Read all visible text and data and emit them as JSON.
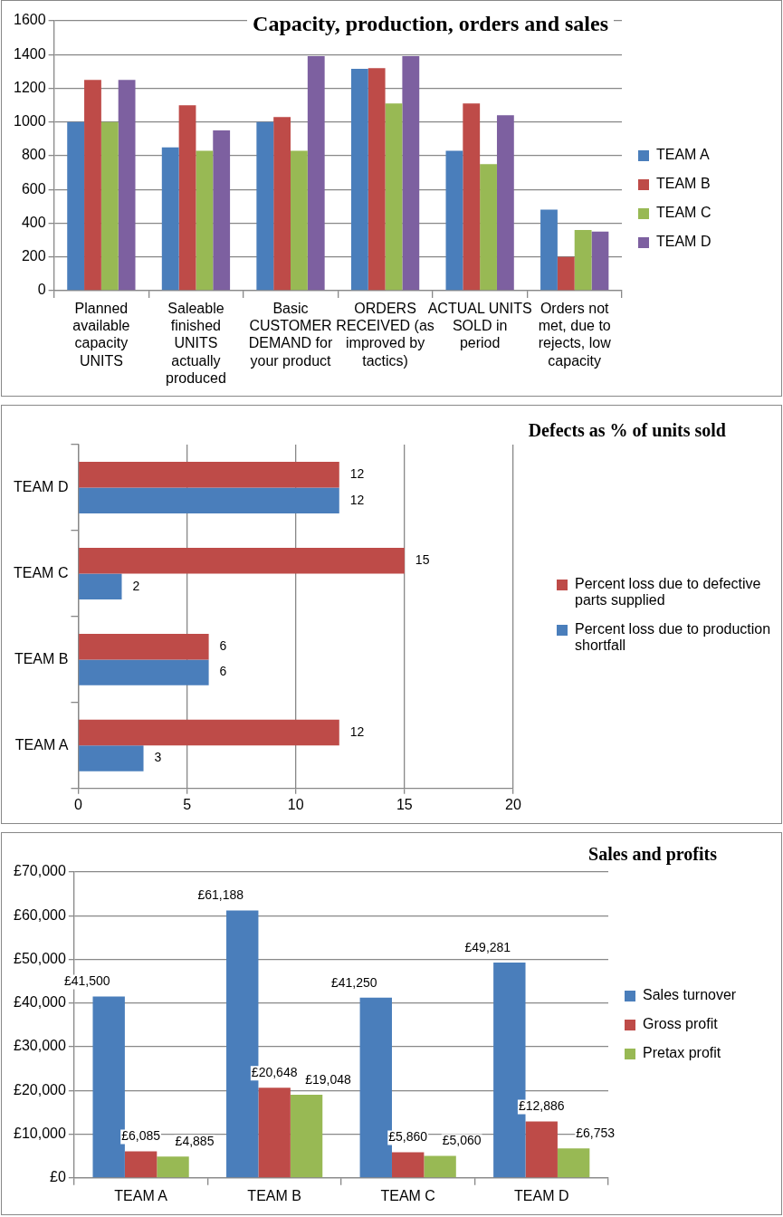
{
  "chart_data": [
    {
      "type": "bar",
      "title": "Capacity, production, orders and sales",
      "categories": [
        "Planned available capacity UNITS",
        "Saleable finished UNITS actually produced",
        "Basic CUSTOMER DEMAND for your product",
        "ORDERS RECEIVED (as improved by tactics)",
        "ACTUAL UNITS SOLD in period",
        "Orders not met, due to rejects, low capacity"
      ],
      "series": [
        {
          "name": "TEAM A",
          "color": "#4a7ebb",
          "values": [
            1000,
            850,
            1000,
            1315,
            830,
            480
          ]
        },
        {
          "name": "TEAM B",
          "color": "#be4b48",
          "values": [
            1250,
            1100,
            1030,
            1320,
            1110,
            200
          ]
        },
        {
          "name": "TEAM C",
          "color": "#98b954",
          "values": [
            1000,
            830,
            830,
            1110,
            750,
            360
          ]
        },
        {
          "name": "TEAM D",
          "color": "#7d60a0",
          "values": [
            1250,
            950,
            1390,
            1390,
            1040,
            350
          ]
        }
      ],
      "ylim": [
        0,
        1600
      ],
      "yticks": [
        0,
        200,
        400,
        600,
        800,
        1000,
        1200,
        1400,
        1600
      ],
      "grid": "y",
      "legend": "right"
    },
    {
      "type": "bar",
      "title": "Defects as % of units sold",
      "orientation": "horizontal",
      "categories": [
        "TEAM D",
        "TEAM C",
        "TEAM B",
        "TEAM A"
      ],
      "series": [
        {
          "name": "Percent loss due to defective parts supplied",
          "color": "#be4b48",
          "values": [
            12,
            15,
            6,
            12
          ]
        },
        {
          "name": "Percent loss due to production shortfall",
          "color": "#4a7ebb",
          "values": [
            12,
            2,
            6,
            3
          ]
        }
      ],
      "xlim": [
        0,
        20
      ],
      "xticks": [
        0,
        5,
        10,
        15,
        20
      ],
      "grid": "x",
      "legend": "right",
      "data_labels": true
    },
    {
      "type": "bar",
      "title": "Sales and profits",
      "categories": [
        "TEAM A",
        "TEAM B",
        "TEAM C",
        "TEAM D"
      ],
      "series": [
        {
          "name": "Sales turnover",
          "color": "#4a7ebb",
          "values": [
            41500,
            61188,
            41250,
            49281
          ],
          "value_labels": [
            "£41,500",
            "£61,188",
            "£41,250",
            "£49,281"
          ]
        },
        {
          "name": "Gross profit",
          "color": "#be4b48",
          "values": [
            6085,
            20648,
            5860,
            12886
          ],
          "value_labels": [
            "£6,085",
            "£20,648",
            "£5,860",
            "£12,886"
          ]
        },
        {
          "name": "Pretax profit",
          "color": "#98b954",
          "values": [
            4885,
            19048,
            5060,
            6753
          ],
          "value_labels": [
            "£4,885",
            "£19,048",
            "£5,060",
            "£6,753"
          ]
        }
      ],
      "ylim": [
        0,
        70000
      ],
      "yticks": [
        {
          "value": 0,
          "label": "£0"
        },
        {
          "value": 10000,
          "label": "£10,000"
        },
        {
          "value": 20000,
          "label": "£20,000"
        },
        {
          "value": 30000,
          "label": "£30,000"
        },
        {
          "value": 40000,
          "label": "£40,000"
        },
        {
          "value": 50000,
          "label": "£50,000"
        },
        {
          "value": 60000,
          "label": "£60,000"
        },
        {
          "value": 70000,
          "label": "£70,000"
        }
      ],
      "grid": "y",
      "legend": "right"
    }
  ]
}
